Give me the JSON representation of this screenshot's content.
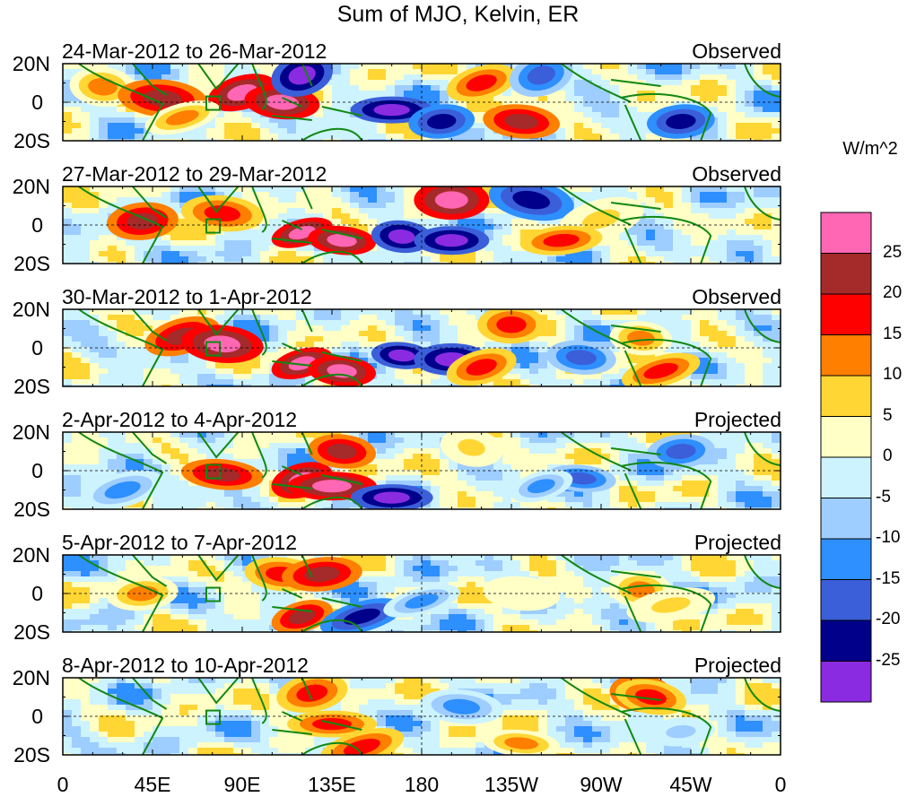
{
  "title": "Sum of MJO, Kelvin, ER",
  "units": "W/m^2",
  "panels": [
    {
      "date_range": "24-Mar-2012 to 26-Mar-2012",
      "status": "Observed"
    },
    {
      "date_range": "27-Mar-2012 to 29-Mar-2012",
      "status": "Observed"
    },
    {
      "date_range": "30-Mar-2012 to 1-Apr-2012",
      "status": "Observed"
    },
    {
      "date_range": "2-Apr-2012 to 4-Apr-2012",
      "status": "Projected"
    },
    {
      "date_range": "5-Apr-2012 to 7-Apr-2012",
      "status": "Projected"
    },
    {
      "date_range": "8-Apr-2012 to 10-Apr-2012",
      "status": "Projected"
    }
  ],
  "lat_labels": [
    "20N",
    "0",
    "20S"
  ],
  "lon_labels": [
    "0",
    "45E",
    "90E",
    "135E",
    "180",
    "135W",
    "90W",
    "45W",
    "0"
  ],
  "colorbar": {
    "labels": [
      "25",
      "20",
      "15",
      "10",
      "5",
      "0",
      "-5",
      "-10",
      "-15",
      "-20",
      "-25"
    ],
    "colors": [
      "#ff66b3",
      "#a52a2a",
      "#ff0000",
      "#ff7f00",
      "#ffd633",
      "#ffffc6",
      "#cdf3ff",
      "#9ecdff",
      "#2e8fff",
      "#3b5fd9",
      "#00008b",
      "#8a2be2"
    ]
  },
  "colors": {
    "coastline": "#118811",
    "frame": "#000000"
  }
}
